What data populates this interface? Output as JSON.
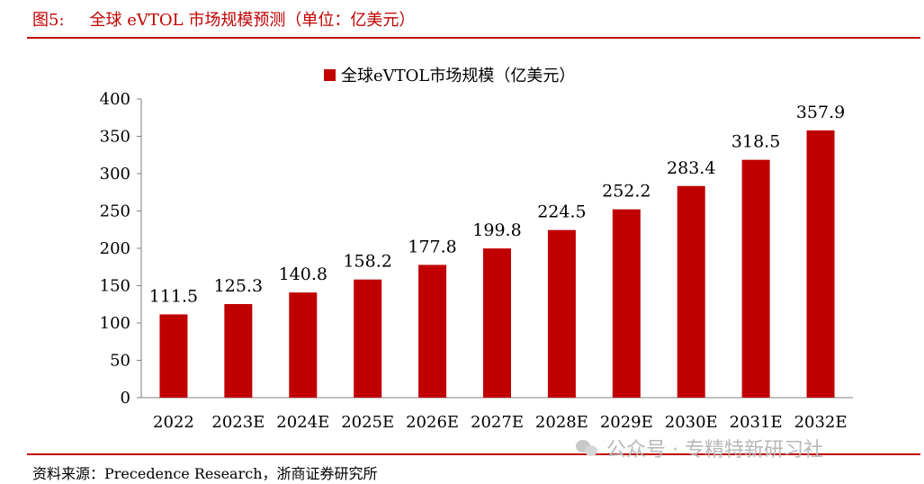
{
  "header": {
    "figure_no": "图5:",
    "title": "全球 eVTOL 市场规模预测（单位：亿美元）"
  },
  "chart_data": {
    "type": "bar",
    "categories": [
      "2022",
      "2023E",
      "2024E",
      "2025E",
      "2026E",
      "2027E",
      "2028E",
      "2029E",
      "2030E",
      "2031E",
      "2032E"
    ],
    "series": [
      {
        "name": "全球eVTOL市场规模（亿美元）",
        "values": [
          111.5,
          125.3,
          140.8,
          158.2,
          177.8,
          199.8,
          224.5,
          252.2,
          283.4,
          318.5,
          357.9
        ],
        "color": "#c00000"
      }
    ],
    "ylim": [
      0,
      400
    ],
    "yticks": [
      0,
      50,
      100,
      150,
      200,
      250,
      300,
      350,
      400
    ],
    "data_labels": true,
    "legend_position": "top-center",
    "grid": false
  },
  "footer": {
    "source": "资料来源：Precedence Research，浙商证券研究所",
    "watermark": "公众号 · 专精特新研习社",
    "watermark_icon": "wechat-icon"
  }
}
